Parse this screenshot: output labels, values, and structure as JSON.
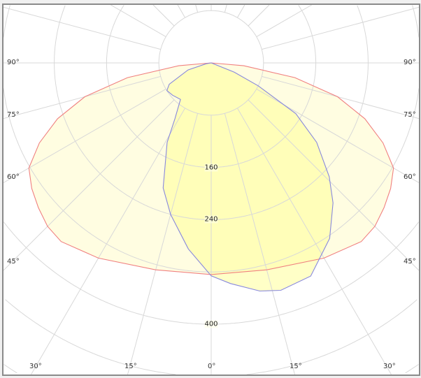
{
  "chart_data": {
    "type": "polar",
    "title": "",
    "angle_unit": "degrees",
    "angle_tick_labels": {
      "left": [
        "90°",
        "75°",
        "60°",
        "45°"
      ],
      "bottom": [
        "30°",
        "15°",
        "0°",
        "15°",
        "30°"
      ],
      "right": [
        "90°",
        "75°",
        "60°",
        "45°"
      ]
    },
    "angle_grid_step": 15,
    "radial_grid_values": [
      80,
      160,
      240,
      320,
      400,
      480,
      560
    ],
    "radial_tick_labels": [
      "160",
      "240",
      "400"
    ],
    "series": [
      {
        "color": "#f08080",
        "fill": "#fffbc8",
        "angles": [
          -90,
          -85,
          -80,
          -75,
          -70,
          -65,
          -60,
          -55,
          -50,
          -45,
          -40,
          -30,
          -15,
          0,
          15,
          30,
          40,
          45,
          50,
          55,
          60,
          65,
          70,
          75,
          80,
          85,
          90
        ],
        "values": [
          0,
          50,
          130,
          200,
          250,
          290,
          322,
          335,
          345,
          354,
          357,
          345,
          328,
          324,
          328,
          345,
          357,
          354,
          345,
          335,
          322,
          290,
          250,
          200,
          130,
          50,
          0
        ]
      },
      {
        "color": "#8888dd",
        "fill": "#ffff99",
        "angles": [
          -90,
          -80,
          -73,
          -63,
          -58,
          -50,
          -40,
          -33,
          -29,
          -21,
          -15,
          -7,
          0,
          5,
          12,
          17,
          25,
          34,
          41,
          46,
          53,
          59,
          64,
          68,
          72,
          90
        ],
        "values": [
          0,
          8,
          37,
          72,
          80,
          77,
          73,
          102,
          139,
          205,
          240,
          287,
          326,
          339,
          357,
          364,
          360,
          324,
          284,
          251,
          202,
          151,
          80,
          38,
          0,
          0
        ]
      }
    ]
  }
}
